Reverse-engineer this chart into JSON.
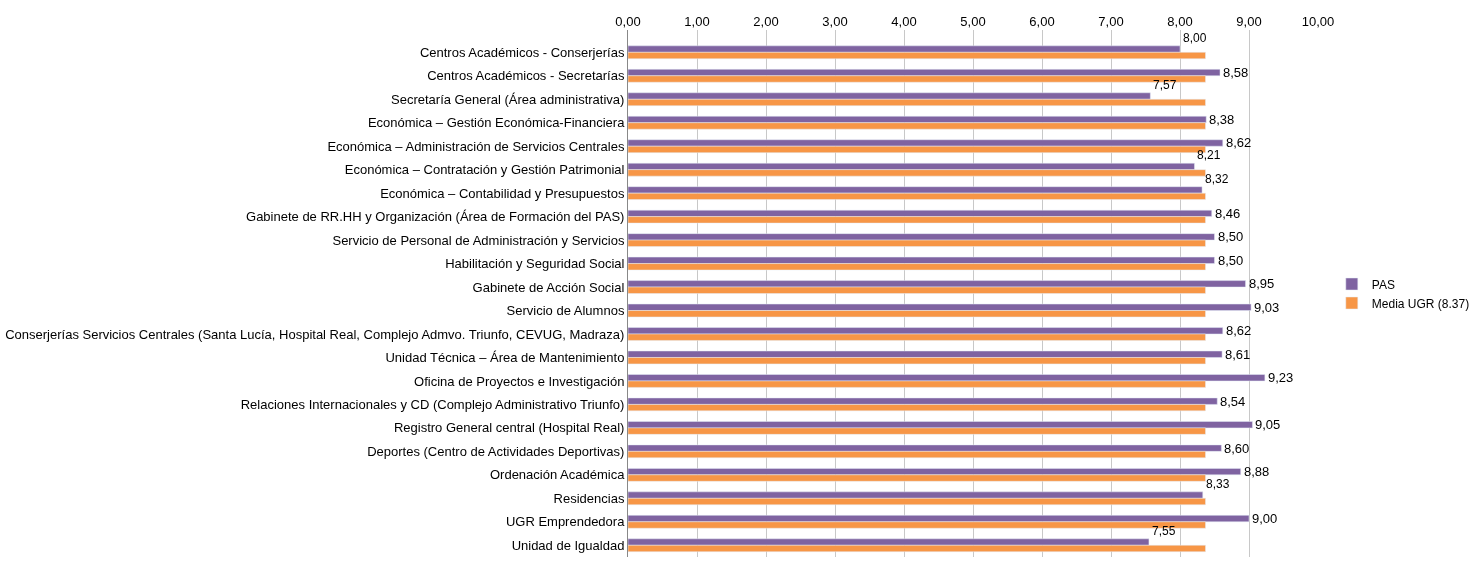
{
  "chart_data": {
    "type": "bar",
    "orientation": "horizontal",
    "categories": [
      "Centros Académicos - Conserjerías",
      "Centros Académicos - Secretarías",
      "Secretaría General (Área administrativa)",
      "Económica – Gestión Económica-Financiera",
      "Económica – Administración de Servicios Centrales",
      "Económica – Contratación y Gestión Patrimonial",
      "Económica – Contabilidad y Presupuestos",
      "Gabinete de RR.HH y Organización (Área de Formación del PAS)",
      "Servicio de Personal de Administración y Servicios",
      "Habilitación y Seguridad Social",
      "Gabinete de Acción Social",
      "Servicio de Alumnos",
      "Conserjerías Servicios Centrales (Santa Lucía, Hospital Real, Complejo Admvo. Triunfo, CEVUG, Madraza)",
      "Unidad Técnica – Área de Mantenimiento",
      "Oficina de Proyectos e Investigación",
      "Relaciones Internacionales y CD (Complejo Administrativo Triunfo)",
      "Registro General central (Hospital Real)",
      "Deportes (Centro de Actividades Deportivas)",
      "Ordenación Académica",
      "Residencias",
      "UGR Emprendedora",
      "Unidad de Igualdad"
    ],
    "series": [
      {
        "name": "PAS",
        "color": "#7f63a1",
        "values": [
          8.0,
          8.58,
          7.57,
          8.38,
          8.62,
          8.21,
          8.32,
          8.46,
          8.5,
          8.5,
          8.95,
          9.03,
          8.62,
          8.61,
          9.23,
          8.54,
          9.05,
          8.6,
          8.88,
          8.33,
          9.0,
          7.55
        ],
        "value_labels": [
          "8,00",
          "8,58",
          "7,57",
          "8,38",
          "8,62",
          "8,21",
          "8,32",
          "8,46",
          "8,50",
          "8,50",
          "8,95",
          "9,03",
          "8,62",
          "8,61",
          "9,23",
          "8,54",
          "9,05",
          "8,60",
          "8,88",
          "8,33",
          "9,00",
          "7,55"
        ]
      },
      {
        "name": "Media UGR (8.37)",
        "color": "#f79646",
        "values": [
          8.37,
          8.37,
          8.37,
          8.37,
          8.37,
          8.37,
          8.37,
          8.37,
          8.37,
          8.37,
          8.37,
          8.37,
          8.37,
          8.37,
          8.37,
          8.37,
          8.37,
          8.37,
          8.37,
          8.37,
          8.37,
          8.37
        ]
      }
    ],
    "xlim": [
      0,
      10
    ],
    "xticks": [
      {
        "value": 0,
        "label": "0,00"
      },
      {
        "value": 1,
        "label": "1,00"
      },
      {
        "value": 2,
        "label": "2,00"
      },
      {
        "value": 3,
        "label": "3,00"
      },
      {
        "value": 4,
        "label": "4,00"
      },
      {
        "value": 5,
        "label": "5,00"
      },
      {
        "value": 6,
        "label": "6,00"
      },
      {
        "value": 7,
        "label": "7,00"
      },
      {
        "value": 8,
        "label": "8,00"
      },
      {
        "value": 9,
        "label": "9,00"
      },
      {
        "value": 10,
        "label": "10,00"
      }
    ],
    "grid": "x",
    "legend": "right"
  }
}
